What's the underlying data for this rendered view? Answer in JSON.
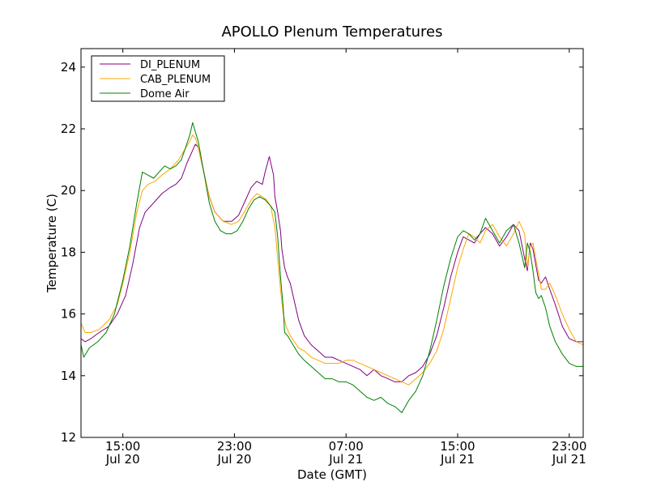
{
  "chart_data": {
    "type": "line",
    "title": "APOLLO Plenum Temperatures",
    "xlabel": "Date (GMT)",
    "ylabel": "Temperature (C)",
    "ylim": [
      12,
      24.6
    ],
    "xlim": [
      0,
      36
    ],
    "grid": false,
    "legend_position": "top-left",
    "x_unit": "hours since Jul 20 12:00 GMT",
    "yticks": [
      12,
      14,
      16,
      18,
      20,
      22,
      24
    ],
    "xticks": [
      {
        "value": 3,
        "time": "15:00",
        "date": "Jul 20"
      },
      {
        "value": 11,
        "time": "23:00",
        "date": "Jul 20"
      },
      {
        "value": 19,
        "time": "07:00",
        "date": "Jul 21"
      },
      {
        "value": 27,
        "time": "15:00",
        "date": "Jul 21"
      },
      {
        "value": 35,
        "time": "23:00",
        "date": "Jul 21"
      }
    ],
    "series": [
      {
        "name": "DI_PLENUM",
        "color": "#800080",
        "x": [
          0,
          0.3,
          0.7,
          1.3,
          2.0,
          2.6,
          3.2,
          3.7,
          4.2,
          4.6,
          5.2,
          5.8,
          6.4,
          6.8,
          7.2,
          7.6,
          8.0,
          8.2,
          8.4,
          8.8,
          9.2,
          9.6,
          10.2,
          10.8,
          11.3,
          11.7,
          12.2,
          12.6,
          13.0,
          13.2,
          13.5,
          13.8,
          13.9,
          14.1,
          14.3,
          14.4,
          14.6,
          14.8,
          15.0,
          15.3,
          15.6,
          16.0,
          16.5,
          17.0,
          17.5,
          18.0,
          18.5,
          19.0,
          19.5,
          20.0,
          20.5,
          21.0,
          21.5,
          22.0,
          22.5,
          23.0,
          23.5,
          24.0,
          24.5,
          25.0,
          25.5,
          26.0,
          26.5,
          27.0,
          27.4,
          27.8,
          28.2,
          28.6,
          29.0,
          29.5,
          30.0,
          30.5,
          31.0,
          31.4,
          31.8,
          32.0,
          32.2,
          32.4,
          32.6,
          32.8,
          33.0,
          33.3,
          33.6,
          34.0,
          34.5,
          35.0,
          35.5,
          36.0
        ],
        "values": [
          15.2,
          15.1,
          15.2,
          15.4,
          15.6,
          16.0,
          16.6,
          17.6,
          18.8,
          19.3,
          19.6,
          19.9,
          20.1,
          20.2,
          20.4,
          20.9,
          21.3,
          21.5,
          21.4,
          20.6,
          19.8,
          19.3,
          19.0,
          19.0,
          19.2,
          19.6,
          20.1,
          20.3,
          20.2,
          20.6,
          21.1,
          20.5,
          19.8,
          19.3,
          18.7,
          18.1,
          17.5,
          17.2,
          17.0,
          16.4,
          15.8,
          15.3,
          15.0,
          14.8,
          14.6,
          14.6,
          14.5,
          14.4,
          14.3,
          14.2,
          14.0,
          14.2,
          14.0,
          13.9,
          13.8,
          13.8,
          14.0,
          14.1,
          14.3,
          14.7,
          15.3,
          16.2,
          17.2,
          18.0,
          18.5,
          18.4,
          18.3,
          18.6,
          18.8,
          18.6,
          18.2,
          18.5,
          18.9,
          18.7,
          17.8,
          17.4,
          18.3,
          18.1,
          17.6,
          17.1,
          17.0,
          17.2,
          16.8,
          16.3,
          15.6,
          15.2,
          15.1,
          15.1
        ]
      },
      {
        "name": "CAB_PLENUM",
        "color": "#ffa500",
        "x": [
          0,
          0.3,
          0.7,
          1.3,
          2.0,
          2.6,
          3.0,
          3.5,
          4.0,
          4.4,
          4.8,
          5.3,
          5.8,
          6.4,
          7.0,
          7.4,
          7.8,
          8.0,
          8.2,
          8.4,
          8.8,
          9.2,
          9.6,
          10.2,
          10.8,
          11.3,
          11.7,
          12.2,
          12.6,
          13.0,
          13.3,
          13.6,
          13.9,
          14.1,
          14.3,
          14.5,
          14.7,
          15.0,
          15.3,
          15.6,
          16.0,
          16.5,
          17.0,
          17.5,
          18.0,
          18.5,
          19.0,
          19.5,
          20.0,
          20.5,
          21.0,
          21.5,
          22.0,
          22.5,
          23.0,
          23.5,
          24.0,
          24.5,
          25.0,
          25.5,
          26.0,
          26.5,
          27.0,
          27.4,
          27.8,
          28.2,
          28.6,
          29.0,
          29.5,
          30.0,
          30.5,
          31.0,
          31.4,
          31.8,
          32.0,
          32.2,
          32.4,
          32.6,
          32.8,
          33.0,
          33.3,
          33.6,
          34.0,
          34.5,
          35.0,
          35.5,
          36.0
        ],
        "values": [
          15.7,
          15.4,
          15.4,
          15.5,
          15.8,
          16.3,
          17.0,
          18.0,
          19.3,
          20.0,
          20.2,
          20.3,
          20.5,
          20.7,
          21.0,
          21.3,
          21.6,
          21.8,
          21.7,
          21.4,
          20.6,
          19.8,
          19.3,
          19.0,
          18.9,
          19.0,
          19.3,
          19.7,
          19.9,
          19.8,
          19.7,
          19.5,
          18.8,
          17.8,
          16.8,
          16.0,
          15.6,
          15.3,
          15.1,
          14.9,
          14.8,
          14.6,
          14.5,
          14.4,
          14.4,
          14.4,
          14.5,
          14.5,
          14.4,
          14.3,
          14.2,
          14.1,
          14.0,
          13.9,
          13.8,
          13.7,
          13.9,
          14.1,
          14.4,
          14.8,
          15.5,
          16.5,
          17.5,
          18.1,
          18.6,
          18.5,
          18.3,
          18.7,
          18.9,
          18.5,
          18.2,
          18.6,
          19.0,
          18.6,
          17.5,
          18.2,
          18.3,
          17.8,
          17.3,
          16.8,
          16.8,
          17.0,
          16.6,
          16.0,
          15.5,
          15.1,
          15.0
        ]
      },
      {
        "name": "Dome Air",
        "color": "#008000",
        "x": [
          0,
          0.2,
          0.6,
          1.2,
          1.8,
          2.4,
          3.0,
          3.5,
          4.0,
          4.4,
          4.8,
          5.2,
          5.6,
          6.0,
          6.4,
          6.8,
          7.2,
          7.5,
          7.8,
          8.0,
          8.2,
          8.4,
          8.8,
          9.2,
          9.6,
          10.0,
          10.4,
          10.8,
          11.2,
          11.6,
          12.0,
          12.4,
          12.8,
          13.2,
          13.6,
          13.9,
          14.1,
          14.3,
          14.5,
          14.6,
          14.8,
          15.2,
          15.6,
          16.0,
          16.5,
          17.0,
          17.5,
          18.0,
          18.5,
          19.0,
          19.5,
          20.0,
          20.5,
          21.0,
          21.5,
          22.0,
          22.5,
          23.0,
          23.5,
          24.0,
          24.5,
          25.0,
          25.5,
          26.0,
          26.5,
          27.0,
          27.4,
          27.8,
          28.2,
          28.6,
          29.0,
          29.5,
          30.0,
          30.5,
          31.0,
          31.4,
          31.8,
          32.0,
          32.2,
          32.4,
          32.6,
          32.8,
          33.0,
          33.3,
          33.6,
          34.0,
          34.5,
          35.0,
          35.5,
          36.0
        ],
        "values": [
          15.0,
          14.6,
          14.9,
          15.1,
          15.4,
          16.0,
          17.1,
          18.2,
          19.6,
          20.6,
          20.5,
          20.4,
          20.6,
          20.8,
          20.7,
          20.8,
          21.0,
          21.4,
          21.8,
          22.2,
          21.9,
          21.6,
          20.6,
          19.6,
          19.0,
          18.7,
          18.6,
          18.6,
          18.7,
          19.0,
          19.4,
          19.7,
          19.8,
          19.7,
          19.5,
          19.3,
          18.5,
          17.2,
          16.2,
          15.4,
          15.3,
          15.0,
          14.7,
          14.5,
          14.3,
          14.1,
          13.9,
          13.9,
          13.8,
          13.8,
          13.7,
          13.5,
          13.3,
          13.2,
          13.3,
          13.1,
          13.0,
          12.8,
          13.2,
          13.5,
          14.0,
          14.8,
          15.8,
          16.9,
          17.8,
          18.5,
          18.7,
          18.6,
          18.4,
          18.6,
          19.1,
          18.7,
          18.3,
          18.7,
          18.9,
          18.3,
          17.5,
          18.3,
          18.0,
          17.4,
          16.7,
          16.5,
          16.6,
          16.2,
          15.6,
          15.1,
          14.7,
          14.4,
          14.3,
          14.3
        ]
      }
    ]
  }
}
